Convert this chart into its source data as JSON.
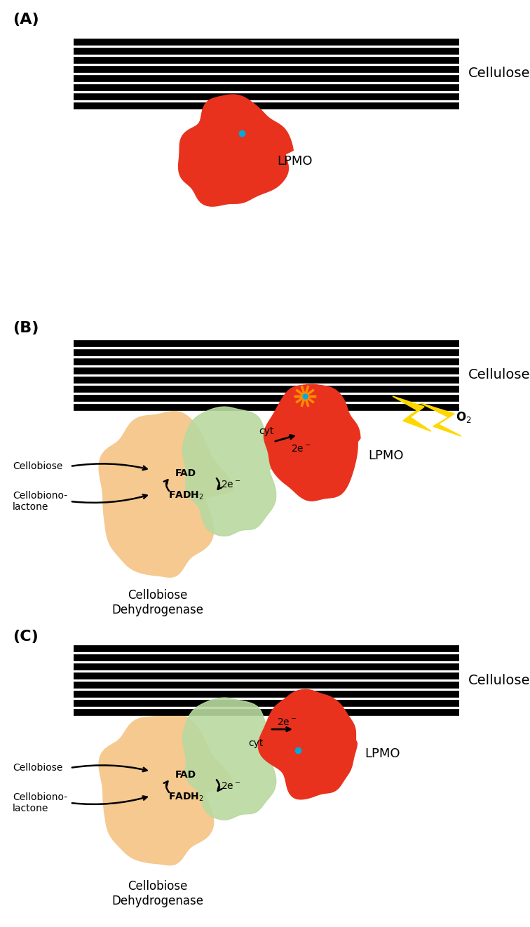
{
  "bg_color": "#ffffff",
  "panel_labels": [
    "(A)",
    "(B)",
    "(C)"
  ],
  "cellulose_label": "Cellulose",
  "lpmo_label": "LPMO",
  "cdh_label": "Cellobiose\nDehydrogenase",
  "cellobiose_label": "Cellobiose",
  "cellobionolactone_label": "Cellobiono-\nlactone",
  "lpmo_color": "#e8321e",
  "cdh_dh_color": "#f5c990",
  "cdh_cyt_color": "#b8d9a0",
  "copper_color": "#00aadd",
  "spark_color": "#ff8c00",
  "lightning_color": "#ffd700",
  "lightning_edge": "#b8860b"
}
